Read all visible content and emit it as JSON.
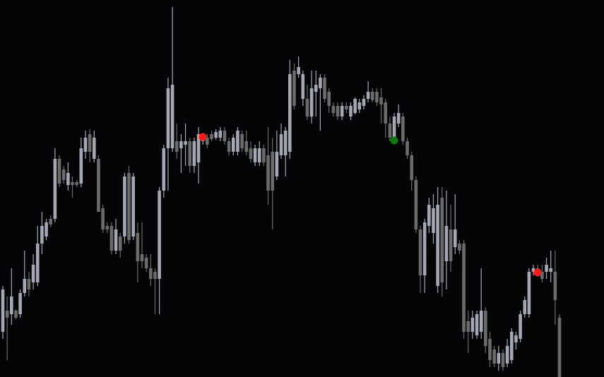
{
  "chart_data": {
    "type": "candlestick",
    "ylim": [
      0,
      534
    ],
    "up_color": "#a3a7b3",
    "down_color": "#6b6b6b",
    "open": [
      64,
      94,
      89,
      94,
      89,
      119,
      139,
      134,
      134,
      189,
      199,
      224,
      224,
      309,
      294,
      272,
      276,
      276,
      274,
      319,
      344,
      309,
      309,
      239,
      214,
      214,
      179,
      199,
      199,
      289,
      199,
      204,
      174,
      169,
      154,
      149,
      139,
      264,
      324,
      324,
      334,
      324,
      329,
      334,
      299,
      304,
      334,
      339,
      344,
      339,
      339,
      349,
      334,
      319,
      319,
      344,
      334,
      324,
      304,
      304,
      324,
      314,
      319,
      284,
      314,
      314,
      319,
      434,
      429,
      394,
      394,
      369,
      404,
      409,
      424,
      404,
      384,
      384,
      369,
      384,
      369,
      374,
      379,
      384,
      394,
      404,
      404,
      396,
      389,
      359,
      339,
      359,
      369,
      334,
      314,
      279,
      209,
      144,
      214,
      204,
      129,
      254,
      164,
      209,
      184,
      189,
      189,
      79,
      64,
      59,
      64,
      94,
      54,
      39,
      19,
      34,
      19,
      24,
      49,
      54,
      89,
      89,
      149,
      154,
      149,
      149,
      149,
      149,
      84
    ],
    "high": [
      129,
      114,
      154,
      96,
      124,
      179,
      149,
      174,
      214,
      234,
      224,
      229,
      324,
      314,
      299,
      304,
      284,
      279,
      339,
      349,
      351,
      349,
      314,
      244,
      219,
      219,
      224,
      204,
      289,
      299,
      289,
      219,
      219,
      174,
      174,
      154,
      269,
      329,
      424,
      524,
      359,
      344,
      359,
      339,
      339,
      354,
      344,
      344,
      349,
      351,
      354,
      354,
      339,
      344,
      354,
      349,
      349,
      334,
      329,
      334,
      329,
      354,
      339,
      349,
      359,
      354,
      449,
      444,
      454,
      434,
      414,
      434,
      434,
      429,
      429,
      409,
      389,
      389,
      389,
      389,
      389,
      396,
      394,
      399,
      419,
      409,
      409,
      409,
      394,
      369,
      374,
      386,
      374,
      339,
      319,
      284,
      214,
      224,
      254,
      259,
      269,
      269,
      264,
      244,
      259,
      194,
      194,
      94,
      94,
      94,
      154,
      99,
      64,
      44,
      44,
      39,
      54,
      69,
      64,
      94,
      114,
      154,
      159,
      159,
      159,
      169,
      179,
      179,
      89
    ],
    "low": [
      54,
      24,
      74,
      82,
      84,
      114,
      114,
      124,
      129,
      174,
      194,
      212,
      219,
      269,
      274,
      264,
      254,
      269,
      269,
      309,
      304,
      304,
      234,
      204,
      204,
      174,
      174,
      169,
      189,
      189,
      194,
      134,
      154,
      149,
      129,
      89,
      89,
      254,
      264,
      319,
      309,
      289,
      299,
      289,
      289,
      274,
      329,
      324,
      334,
      336,
      334,
      329,
      314,
      314,
      314,
      319,
      314,
      304,
      299,
      299,
      299,
      244,
      209,
      279,
      309,
      284,
      309,
      379,
      424,
      384,
      364,
      359,
      369,
      349,
      389,
      374,
      369,
      364,
      364,
      374,
      364,
      372,
      374,
      379,
      389,
      389,
      384,
      359,
      339,
      334,
      334,
      354,
      329,
      309,
      264,
      204,
      119,
      119,
      204,
      189,
      119,
      114,
      124,
      149,
      174,
      174,
      54,
      34,
      54,
      54,
      54,
      34,
      14,
      14,
      9,
      9,
      14,
      19,
      39,
      49,
      84,
      84,
      144,
      144,
      134,
      139,
      134,
      74,
      0
    ],
    "close": [
      124,
      84,
      114,
      84,
      119,
      139,
      124,
      159,
      189,
      214,
      219,
      216,
      309,
      274,
      279,
      289,
      272,
      272,
      324,
      339,
      319,
      339,
      234,
      209,
      209,
      179,
      209,
      179,
      284,
      194,
      284,
      164,
      164,
      154,
      139,
      139,
      264,
      324,
      409,
      414,
      319,
      334,
      334,
      299,
      334,
      344,
      339,
      329,
      337,
      347,
      349,
      334,
      319,
      339,
      349,
      324,
      319,
      309,
      324,
      324,
      304,
      264,
      264,
      319,
      344,
      349,
      429,
      384,
      439,
      429,
      369,
      409,
      414,
      424,
      394,
      384,
      374,
      369,
      384,
      379,
      384,
      394,
      389,
      394,
      404,
      392,
      389,
      386,
      359,
      339,
      369,
      374,
      334,
      314,
      279,
      209,
      144,
      219,
      244,
      239,
      244,
      134,
      214,
      164,
      209,
      179,
      64,
      64,
      84,
      89,
      94,
      44,
      24,
      19,
      34,
      14,
      44,
      64,
      59,
      89,
      109,
      149,
      154,
      149,
      139,
      159,
      154,
      109,
      0
    ],
    "signals": [
      {
        "color": "#ff1a1a",
        "values": [
          null,
          null,
          null,
          null,
          null,
          null,
          null,
          null,
          null,
          null,
          null,
          null,
          null,
          null,
          null,
          null,
          null,
          null,
          null,
          null,
          null,
          null,
          null,
          null,
          null,
          null,
          null,
          null,
          null,
          null,
          null,
          null,
          null,
          null,
          null,
          null,
          null,
          null,
          null,
          null,
          null,
          null,
          null,
          null,
          null,
          null,
          340,
          null,
          null,
          null,
          null,
          null,
          null,
          null,
          null,
          null,
          null,
          null,
          null,
          null,
          null,
          null,
          null,
          null,
          null,
          null,
          null,
          null,
          null,
          null,
          null,
          null,
          null,
          null,
          null,
          null,
          null,
          null,
          null,
          null,
          null,
          null,
          null,
          null,
          null,
          null,
          null,
          null,
          null,
          null,
          null,
          null,
          null,
          null,
          null,
          null,
          null,
          null,
          null,
          null,
          null,
          null,
          null,
          null,
          null,
          null,
          null,
          null,
          null,
          null,
          null,
          null,
          null,
          null,
          null,
          null,
          null,
          null,
          null,
          null,
          null,
          null,
          null,
          148,
          null,
          null,
          null,
          null,
          null
        ]
      },
      {
        "color": "#0a7a0a",
        "values": [
          null,
          null,
          null,
          null,
          null,
          null,
          null,
          null,
          null,
          null,
          null,
          null,
          null,
          null,
          null,
          null,
          null,
          null,
          null,
          null,
          null,
          null,
          null,
          null,
          null,
          null,
          null,
          null,
          null,
          null,
          null,
          null,
          null,
          null,
          null,
          null,
          null,
          null,
          null,
          null,
          null,
          null,
          null,
          null,
          null,
          null,
          null,
          null,
          null,
          null,
          null,
          null,
          null,
          null,
          null,
          null,
          null,
          null,
          null,
          null,
          null,
          null,
          null,
          null,
          null,
          null,
          null,
          null,
          null,
          null,
          null,
          null,
          null,
          null,
          null,
          null,
          null,
          null,
          null,
          null,
          null,
          null,
          null,
          null,
          null,
          null,
          null,
          null,
          null,
          null,
          335,
          null,
          null,
          null,
          null,
          null,
          null,
          null,
          null,
          null,
          null,
          null,
          null,
          null,
          null,
          null,
          null,
          null,
          null,
          null,
          null,
          null,
          null,
          null,
          null,
          null,
          null,
          null,
          null,
          null,
          null,
          null,
          null,
          null,
          null,
          null,
          null,
          null,
          null
        ]
      }
    ]
  }
}
